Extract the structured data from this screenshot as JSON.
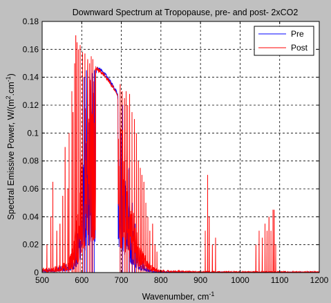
{
  "chart_data": {
    "type": "line",
    "title": "Downward Spectrum at Tropopause, pre- and post- 2xCO2",
    "xlabel": "Wavenumber, cm",
    "xlabel_sup": "-1",
    "ylabel_pre": "Spectral Emissive Power, W/(m",
    "ylabel_sup": "2",
    "ylabel_post": ".cm",
    "ylabel_sup2": "-1",
    "ylabel_end": ")",
    "xlim": [
      500,
      1200
    ],
    "ylim": [
      0,
      0.18
    ],
    "xticks": [
      500,
      600,
      700,
      800,
      900,
      1000,
      1100,
      1200
    ],
    "yticks": [
      0,
      0.02,
      0.04,
      0.06,
      0.08,
      0.1,
      0.12,
      0.14,
      0.16,
      0.18
    ],
    "ytick_labels": [
      "0",
      "0.02",
      "0.04",
      "0.06",
      "0.08",
      "0.1",
      "0.12",
      "0.14",
      "0.16",
      "0.18"
    ],
    "grid": true,
    "legend_position": "top-right",
    "series": [
      {
        "name": "Pre",
        "color": "#0000ff",
        "envelope_x": [
          500,
          540,
          560,
          575,
          590,
          600,
          610,
          620,
          630,
          640,
          650,
          660,
          670,
          680,
          690,
          700,
          710,
          720,
          730,
          740,
          750,
          760,
          770,
          780,
          800,
          900,
          1200
        ],
        "envelope_y": [
          0.002,
          0.004,
          0.006,
          0.01,
          0.03,
          0.075,
          0.11,
          0.13,
          0.142,
          0.148,
          0.146,
          0.143,
          0.139,
          0.135,
          0.13,
          0.11,
          0.08,
          0.05,
          0.03,
          0.018,
          0.01,
          0.006,
          0.003,
          0.002,
          0.001,
          0.0005,
          0.0005
        ],
        "peaks": [
          {
            "x": 596,
            "y": 0.08
          },
          {
            "x": 606,
            "y": 0.14
          },
          {
            "x": 612,
            "y": 0.145
          },
          {
            "x": 620,
            "y": 0.14
          },
          {
            "x": 627,
            "y": 0.143
          },
          {
            "x": 632,
            "y": 0.145
          },
          {
            "x": 697,
            "y": 0.115
          },
          {
            "x": 703,
            "y": 0.12
          },
          {
            "x": 712,
            "y": 0.1
          },
          {
            "x": 720,
            "y": 0.075
          },
          {
            "x": 728,
            "y": 0.05
          },
          {
            "x": 735,
            "y": 0.035
          }
        ]
      },
      {
        "name": "Post",
        "color": "#ff0000",
        "envelope_x": [
          500,
          540,
          560,
          575,
          590,
          600,
          610,
          620,
          630,
          640,
          650,
          660,
          670,
          680,
          690,
          700,
          710,
          720,
          730,
          740,
          750,
          760,
          770,
          780,
          790,
          800,
          900,
          1200
        ],
        "envelope_y": [
          0.003,
          0.005,
          0.008,
          0.015,
          0.045,
          0.09,
          0.14,
          0.152,
          0.15,
          0.147,
          0.145,
          0.142,
          0.138,
          0.134,
          0.128,
          0.115,
          0.095,
          0.07,
          0.045,
          0.03,
          0.02,
          0.013,
          0.008,
          0.005,
          0.003,
          0.002,
          0.001,
          0.001
        ],
        "peaks": [
          {
            "x": 512,
            "y": 0.02
          },
          {
            "x": 522,
            "y": 0.04
          },
          {
            "x": 527,
            "y": 0.065
          },
          {
            "x": 537,
            "y": 0.03
          },
          {
            "x": 545,
            "y": 0.035
          },
          {
            "x": 552,
            "y": 0.055
          },
          {
            "x": 558,
            "y": 0.09
          },
          {
            "x": 565,
            "y": 0.06
          },
          {
            "x": 568,
            "y": 0.1
          },
          {
            "x": 575,
            "y": 0.13
          },
          {
            "x": 578,
            "y": 0.115
          },
          {
            "x": 582,
            "y": 0.15
          },
          {
            "x": 585,
            "y": 0.17
          },
          {
            "x": 588,
            "y": 0.165
          },
          {
            "x": 592,
            "y": 0.16
          },
          {
            "x": 596,
            "y": 0.163
          },
          {
            "x": 602,
            "y": 0.158
          },
          {
            "x": 608,
            "y": 0.157
          },
          {
            "x": 615,
            "y": 0.153
          },
          {
            "x": 620,
            "y": 0.15
          },
          {
            "x": 624,
            "y": 0.155
          },
          {
            "x": 628,
            "y": 0.153
          },
          {
            "x": 697,
            "y": 0.135
          },
          {
            "x": 702,
            "y": 0.13
          },
          {
            "x": 708,
            "y": 0.125
          },
          {
            "x": 712,
            "y": 0.13
          },
          {
            "x": 716,
            "y": 0.12
          },
          {
            "x": 721,
            "y": 0.128
          },
          {
            "x": 727,
            "y": 0.115
          },
          {
            "x": 733,
            "y": 0.11
          },
          {
            "x": 738,
            "y": 0.1
          },
          {
            "x": 743,
            "y": 0.08
          },
          {
            "x": 748,
            "y": 0.075
          },
          {
            "x": 752,
            "y": 0.07
          },
          {
            "x": 757,
            "y": 0.065
          },
          {
            "x": 762,
            "y": 0.05
          },
          {
            "x": 767,
            "y": 0.04
          },
          {
            "x": 772,
            "y": 0.03
          },
          {
            "x": 779,
            "y": 0.035
          },
          {
            "x": 785,
            "y": 0.02
          },
          {
            "x": 790,
            "y": 0.015
          },
          {
            "x": 912,
            "y": 0.03
          },
          {
            "x": 918,
            "y": 0.07
          },
          {
            "x": 922,
            "y": 0.04
          },
          {
            "x": 930,
            "y": 0.02
          },
          {
            "x": 938,
            "y": 0.025
          },
          {
            "x": 1040,
            "y": 0.02
          },
          {
            "x": 1048,
            "y": 0.03
          },
          {
            "x": 1056,
            "y": 0.025
          },
          {
            "x": 1063,
            "y": 0.035
          },
          {
            "x": 1068,
            "y": 0.03
          },
          {
            "x": 1073,
            "y": 0.04
          },
          {
            "x": 1078,
            "y": 0.03
          },
          {
            "x": 1083,
            "y": 0.045
          },
          {
            "x": 1086,
            "y": 0.045
          },
          {
            "x": 1090,
            "y": 0.02
          }
        ]
      }
    ]
  }
}
